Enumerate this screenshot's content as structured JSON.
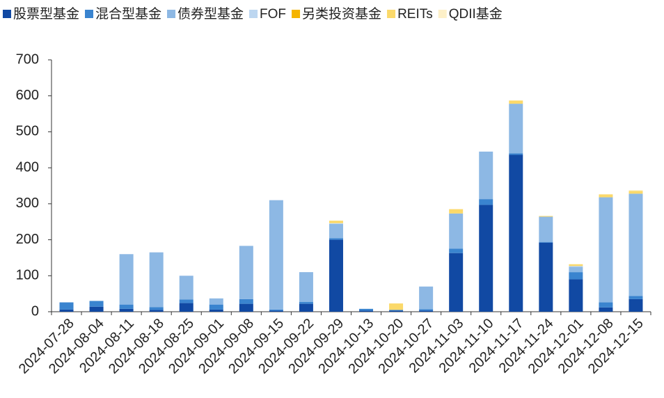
{
  "chart_data": {
    "type": "stacked_bar",
    "categories": [
      "2024-07-28",
      "2024-08-04",
      "2024-08-11",
      "2024-08-18",
      "2024-08-25",
      "2024-09-01",
      "2024-09-08",
      "2024-09-15",
      "2024-09-22",
      "2024-09-29",
      "2024-10-13",
      "2024-10-20",
      "2024-10-27",
      "2024-11-03",
      "2024-11-10",
      "2024-11-17",
      "2024-11-24",
      "2024-12-01",
      "2024-12-08",
      "2024-12-15"
    ],
    "series": [
      {
        "name": "股票型基金",
        "color": "#1149a3",
        "values": [
          6,
          14,
          8,
          5,
          24,
          6,
          22,
          3,
          22,
          200,
          3,
          3,
          3,
          163,
          297,
          436,
          192,
          90,
          12,
          35
        ]
      },
      {
        "name": "混合型基金",
        "color": "#3a84cf",
        "values": [
          20,
          16,
          12,
          8,
          10,
          14,
          13,
          3,
          5,
          4,
          5,
          2,
          4,
          12,
          16,
          4,
          2,
          20,
          14,
          9
        ]
      },
      {
        "name": "债券型基金",
        "color": "#8db8e4",
        "values": [
          0,
          0,
          140,
          152,
          66,
          17,
          148,
          304,
          83,
          40,
          0,
          0,
          63,
          98,
          132,
          138,
          70,
          15,
          292,
          284
        ]
      },
      {
        "name": "FOF",
        "color": "#bcd6f0",
        "values": [
          0,
          0,
          0,
          0,
          0,
          0,
          0,
          0,
          0,
          2,
          0,
          0,
          0,
          0,
          0,
          0,
          0,
          2,
          0,
          0
        ]
      },
      {
        "name": "另类投资基金",
        "color": "#f5b400",
        "values": [
          0,
          0,
          0,
          0,
          0,
          0,
          0,
          0,
          0,
          0,
          0,
          0,
          0,
          0,
          0,
          0,
          0,
          0,
          0,
          0
        ]
      },
      {
        "name": "REITs",
        "color": "#fbd96a",
        "values": [
          0,
          0,
          0,
          0,
          0,
          0,
          0,
          0,
          0,
          7,
          0,
          18,
          0,
          12,
          0,
          9,
          2,
          5,
          8,
          8
        ]
      },
      {
        "name": "QDII基金",
        "color": "#fdf0c8",
        "values": [
          0,
          0,
          0,
          0,
          0,
          0,
          0,
          0,
          0,
          0,
          0,
          0,
          0,
          0,
          0,
          0,
          0,
          0,
          1,
          2
        ]
      }
    ],
    "ylim": [
      0,
      700
    ],
    "yticks": [
      0,
      100,
      200,
      300,
      400,
      500,
      600,
      700
    ],
    "legend": "top"
  }
}
